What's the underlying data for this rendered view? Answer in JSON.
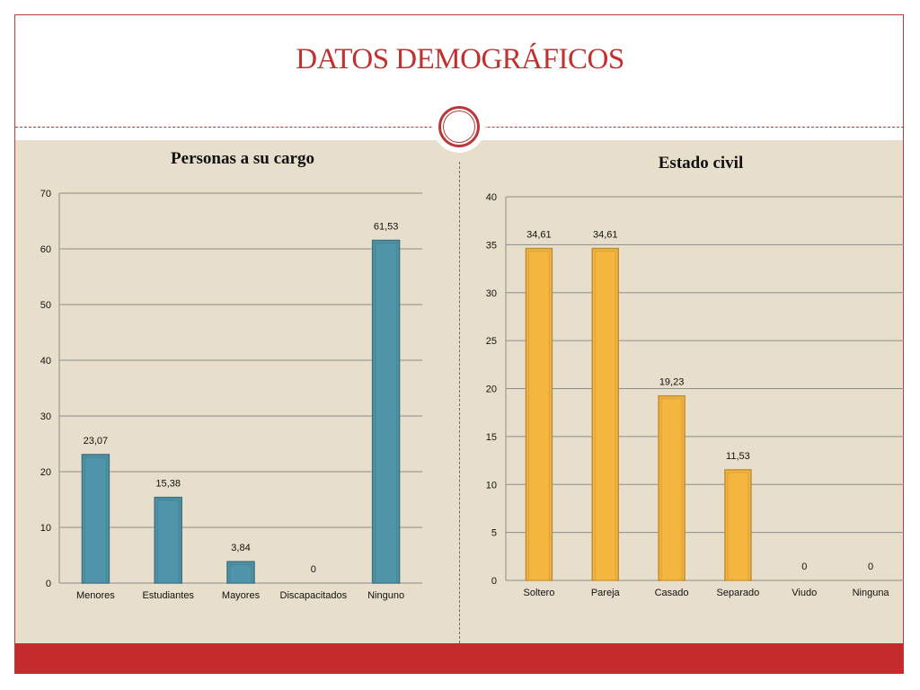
{
  "slide": {
    "title": "DATOS DEMOGRÁFICOS"
  },
  "colors": {
    "accent": "#c0312f",
    "background": "#e7dfcb",
    "band": "#c32b2c"
  },
  "chart_data": [
    {
      "type": "bar",
      "title": "Personas a su cargo",
      "categories": [
        "Menores",
        "Estudiantes",
        "Mayores",
        "Discapacitados",
        "Ninguno"
      ],
      "values": [
        23.07,
        15.38,
        3.84,
        0,
        61.53
      ],
      "value_labels": [
        "23,07",
        "15,38",
        "3,84",
        "0",
        "61,53"
      ],
      "ylim": [
        0,
        70
      ],
      "yticks": [
        0,
        10,
        20,
        30,
        40,
        50,
        60,
        70
      ],
      "grid": true,
      "color": "#4f94a8"
    },
    {
      "type": "bar",
      "title": "Estado civil",
      "categories": [
        "Soltero",
        "Pareja",
        "Casado",
        "Separado",
        "Viudo",
        "Ninguna"
      ],
      "values": [
        34.61,
        34.61,
        19.23,
        11.53,
        0,
        0
      ],
      "value_labels": [
        "34,61",
        "34,61",
        "19,23",
        "11,53",
        "0",
        "0"
      ],
      "ylim": [
        0,
        40
      ],
      "yticks": [
        0,
        5,
        10,
        15,
        20,
        25,
        30,
        35,
        40
      ],
      "grid": true,
      "color": "#f5b640"
    }
  ]
}
